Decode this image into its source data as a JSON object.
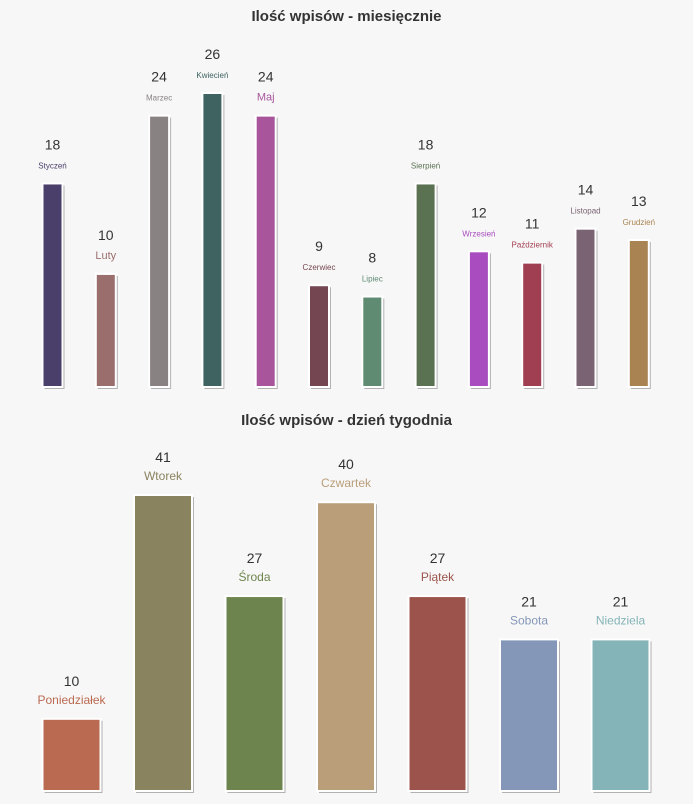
{
  "chart_data": [
    {
      "type": "bar",
      "title": "Ilość wpisów - miesięcznie",
      "categories": [
        "Styczeń",
        "Luty",
        "Marzec",
        "Kwiecień",
        "Maj",
        "Czerwiec",
        "Lipiec",
        "Sierpień",
        "Wrzesień",
        "Październik",
        "Listopad",
        "Grudzień"
      ],
      "values": [
        18,
        10,
        24,
        26,
        24,
        9,
        8,
        18,
        12,
        11,
        14,
        13
      ],
      "colors": [
        "#4a3e6b",
        "#9b6e6e",
        "#888283",
        "#3e6360",
        "#a9559c",
        "#744652",
        "#5f8b72",
        "#5a7251",
        "#a84cbf",
        "#a13f52",
        "#7a6372",
        "#a98452"
      ],
      "ylim": [
        0,
        26
      ]
    },
    {
      "type": "bar",
      "title": "Ilość wpisów - dzień tygodnia",
      "categories": [
        "Poniedziałek",
        "Wtorek",
        "Środa",
        "Czwartek",
        "Piątek",
        "Sobota",
        "Niedziela"
      ],
      "values": [
        10,
        41,
        27,
        40,
        27,
        21,
        21
      ],
      "colors": [
        "#b96a50",
        "#8a835f",
        "#6e844e",
        "#b99e79",
        "#9c534b",
        "#8597b9",
        "#85b4b8"
      ],
      "ylim": [
        0,
        41
      ]
    }
  ]
}
